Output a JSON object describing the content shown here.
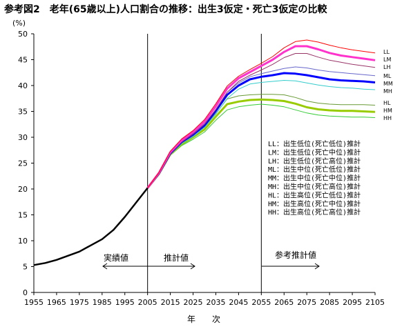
{
  "title": "参考図2　老年(65歳以上)人口割合の推移：出生3仮定・死亡3仮定の比較",
  "chart_data": {
    "type": "line",
    "ylabel": "(%)",
    "xlabel": "年　次",
    "xlim": [
      1955,
      2105
    ],
    "ylim": [
      0,
      50
    ],
    "xticks": [
      1955,
      1965,
      1975,
      1985,
      1995,
      2005,
      2015,
      2025,
      2035,
      2045,
      2055,
      2065,
      2075,
      2085,
      2095,
      2105
    ],
    "yticks": [
      0,
      5,
      10,
      15,
      20,
      25,
      30,
      35,
      40,
      45,
      50
    ],
    "grid": false,
    "vlines": [
      2005,
      2055
    ],
    "annotations": [
      {
        "text": "実績値",
        "x": 1985,
        "y": 6.7
      },
      {
        "text": "推計値",
        "x": 2021,
        "y": 6.7
      },
      {
        "text": "参考推計値",
        "x": 2068,
        "y": 6.7
      }
    ],
    "arrows": [
      {
        "from": [
          1985,
          5.0
        ],
        "to": [
          2005,
          5.0
        ]
      },
      {
        "from": [
          2005,
          5.0
        ],
        "to": [
          2025,
          5.0
        ]
      },
      {
        "from": [
          2055,
          5.0
        ],
        "to": [
          2080,
          5.0
        ]
      }
    ],
    "legend": {
      "placement": "center-right",
      "entries": [
        "LL：出生低位(死亡低位)推計",
        "LM：出生低位(死亡中位)推計",
        "LH：出生低位(死亡高位)推計",
        "ML：出生中位(死亡低位)推計",
        "MM：出生中位(死亡中位)推計",
        "MH：出生中位(死亡高位)推計",
        "HL：出生高位(死亡低位)推計",
        "HM：出生高位(死亡中位)推計",
        "HH：出生高位(死亡高位)推計"
      ]
    },
    "actual": {
      "name": "",
      "color": "#000000",
      "x": [
        1955,
        1960,
        1965,
        1970,
        1975,
        1980,
        1985,
        1990,
        1995,
        2000,
        2005
      ],
      "values": [
        5.3,
        5.7,
        6.3,
        7.1,
        7.9,
        9.1,
        10.3,
        12.1,
        14.6,
        17.4,
        20.2
      ]
    },
    "series": [
      {
        "name": "LL",
        "color": "#ff0000",
        "width": 1,
        "x": [
          2005,
          2010,
          2015,
          2020,
          2025,
          2030,
          2035,
          2040,
          2045,
          2050,
          2055,
          2060,
          2065,
          2070,
          2075,
          2080,
          2085,
          2090,
          2095,
          2100,
          2105
        ],
        "values": [
          20.2,
          23.2,
          27.3,
          29.7,
          31.3,
          33.4,
          36.5,
          39.9,
          41.8,
          43.1,
          44.3,
          45.6,
          47.3,
          48.5,
          48.8,
          48.4,
          47.8,
          47.3,
          46.9,
          46.6,
          46.3
        ]
      },
      {
        "name": "LM",
        "color": "#ff33cc",
        "width": 3,
        "x": [
          2005,
          2010,
          2015,
          2020,
          2025,
          2030,
          2035,
          2040,
          2045,
          2050,
          2055,
          2060,
          2065,
          2070,
          2075,
          2080,
          2085,
          2090,
          2095,
          2100,
          2105
        ],
        "values": [
          20.2,
          23.1,
          27.1,
          29.4,
          31.0,
          33.0,
          36.0,
          39.4,
          41.4,
          42.6,
          43.8,
          45.0,
          46.5,
          47.6,
          47.6,
          47.0,
          46.3,
          45.8,
          45.5,
          45.2,
          44.9
        ]
      },
      {
        "name": "LH",
        "color": "#993366",
        "width": 1,
        "x": [
          2005,
          2010,
          2015,
          2020,
          2025,
          2030,
          2035,
          2040,
          2045,
          2050,
          2055,
          2060,
          2065,
          2070,
          2075,
          2080,
          2085,
          2090,
          2095,
          2100,
          2105
        ],
        "values": [
          20.2,
          23.0,
          26.9,
          29.1,
          30.6,
          32.5,
          35.4,
          38.7,
          40.8,
          42.0,
          43.0,
          44.1,
          45.4,
          46.2,
          46.2,
          45.5,
          44.9,
          44.5,
          44.1,
          43.8,
          43.5
        ]
      },
      {
        "name": "ML",
        "color": "#6666cc",
        "width": 1,
        "x": [
          2005,
          2010,
          2015,
          2020,
          2025,
          2030,
          2035,
          2040,
          2045,
          2050,
          2055,
          2060,
          2065,
          2070,
          2075,
          2080,
          2085,
          2090,
          2095,
          2100,
          2105
        ],
        "values": [
          20.2,
          23.1,
          27.1,
          29.3,
          30.8,
          32.6,
          35.4,
          38.7,
          40.5,
          41.7,
          42.3,
          42.8,
          43.3,
          43.6,
          43.4,
          43.0,
          42.7,
          42.5,
          42.3,
          42.1,
          41.9
        ]
      },
      {
        "name": "MM",
        "color": "#0000ff",
        "width": 3,
        "x": [
          2005,
          2010,
          2015,
          2020,
          2025,
          2030,
          2035,
          2040,
          2045,
          2050,
          2055,
          2060,
          2065,
          2070,
          2075,
          2080,
          2085,
          2090,
          2095,
          2100,
          2105
        ],
        "values": [
          20.2,
          23.0,
          26.9,
          29.1,
          30.5,
          32.3,
          35.1,
          38.2,
          40.0,
          41.2,
          41.7,
          42.0,
          42.4,
          42.3,
          42.0,
          41.6,
          41.2,
          41.0,
          40.9,
          40.8,
          40.6
        ]
      },
      {
        "name": "MH",
        "color": "#33cccc",
        "width": 1,
        "x": [
          2005,
          2010,
          2015,
          2020,
          2025,
          2030,
          2035,
          2040,
          2045,
          2050,
          2055,
          2060,
          2065,
          2070,
          2075,
          2080,
          2085,
          2090,
          2095,
          2100,
          2105
        ],
        "values": [
          20.2,
          22.9,
          26.7,
          28.8,
          30.1,
          31.9,
          34.5,
          37.5,
          39.3,
          40.3,
          40.6,
          40.8,
          41.0,
          40.9,
          40.5,
          40.1,
          39.8,
          39.6,
          39.5,
          39.3,
          39.2
        ]
      },
      {
        "name": "HL",
        "color": "#669933",
        "width": 1,
        "x": [
          2005,
          2010,
          2015,
          2020,
          2025,
          2030,
          2035,
          2040,
          2045,
          2050,
          2055,
          2060,
          2065,
          2070,
          2075,
          2080,
          2085,
          2090,
          2095,
          2100,
          2105
        ],
        "values": [
          20.2,
          23.0,
          26.9,
          29.0,
          30.4,
          32.0,
          34.6,
          37.4,
          38.0,
          38.2,
          38.3,
          38.3,
          38.2,
          37.7,
          37.0,
          36.6,
          36.4,
          36.3,
          36.3,
          36.3,
          36.2
        ]
      },
      {
        "name": "HM",
        "color": "#99cc00",
        "width": 3,
        "x": [
          2005,
          2010,
          2015,
          2020,
          2025,
          2030,
          2035,
          2040,
          2045,
          2050,
          2055,
          2060,
          2065,
          2070,
          2075,
          2080,
          2085,
          2090,
          2095,
          2100,
          2105
        ],
        "values": [
          20.2,
          22.9,
          26.7,
          28.7,
          30.0,
          31.5,
          34.0,
          36.4,
          36.9,
          37.2,
          37.3,
          37.2,
          37.0,
          36.5,
          35.8,
          35.4,
          35.2,
          35.1,
          35.1,
          35.0,
          34.9
        ]
      },
      {
        "name": "HH",
        "color": "#33cc33",
        "width": 1,
        "x": [
          2005,
          2010,
          2015,
          2020,
          2025,
          2030,
          2035,
          2040,
          2045,
          2050,
          2055,
          2060,
          2065,
          2070,
          2075,
          2080,
          2085,
          2090,
          2095,
          2100,
          2105
        ],
        "values": [
          20.2,
          22.8,
          26.5,
          28.4,
          29.6,
          31.0,
          33.3,
          35.3,
          35.9,
          36.2,
          36.4,
          36.2,
          35.9,
          35.3,
          34.7,
          34.3,
          34.1,
          34.0,
          33.9,
          33.9,
          33.8
        ]
      }
    ]
  }
}
